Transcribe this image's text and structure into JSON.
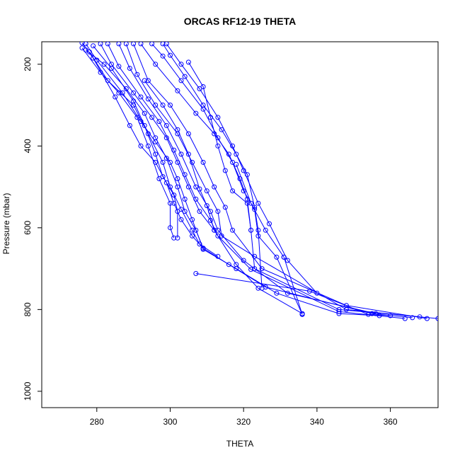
{
  "chart_data": {
    "type": "line",
    "title": "ORCAS RF12-19 THETA",
    "xlabel": "THETA",
    "ylabel": "Pressure (mbar)",
    "xlim": [
      265,
      373
    ],
    "ylim": [
      1040,
      145
    ],
    "y_reversed": true,
    "grid": false,
    "x_ticks": [
      280,
      300,
      320,
      340,
      360
    ],
    "y_ticks": [
      200,
      400,
      600,
      800,
      1000
    ],
    "series_color": "#0000ff",
    "series": [
      {
        "points": [
          [
            276,
            148
          ],
          [
            279,
            185
          ],
          [
            285,
            280
          ],
          [
            289,
            350
          ],
          [
            292,
            400
          ],
          [
            296,
            440
          ],
          [
            299,
            490
          ],
          [
            301,
            540
          ],
          [
            303,
            580
          ],
          [
            306,
            620
          ],
          [
            309,
            650
          ],
          [
            316,
            690
          ],
          [
            326,
            745
          ],
          [
            355,
            810
          ],
          [
            366,
            820
          ]
        ]
      },
      {
        "points": [
          [
            277,
            150
          ],
          [
            280,
            190
          ],
          [
            287,
            270
          ],
          [
            292,
            340
          ],
          [
            296,
            390
          ],
          [
            300,
            440
          ],
          [
            302,
            480
          ],
          [
            304,
            530
          ],
          [
            306,
            580
          ],
          [
            309,
            653
          ],
          [
            318,
            700
          ],
          [
            329,
            760
          ],
          [
            346,
            810
          ],
          [
            357,
            815
          ]
        ]
      },
      {
        "points": [
          [
            281,
            150
          ],
          [
            284,
            200
          ],
          [
            290,
            270
          ],
          [
            295,
            330
          ],
          [
            299,
            380
          ],
          [
            302,
            440
          ],
          [
            305,
            500
          ],
          [
            308,
            560
          ],
          [
            312,
            606
          ],
          [
            318,
            690
          ],
          [
            324,
            748
          ],
          [
            336,
            810
          ]
        ]
      },
      {
        "points": [
          [
            283,
            150
          ],
          [
            286,
            205
          ],
          [
            292,
            280
          ],
          [
            297,
            340
          ],
          [
            301,
            410
          ],
          [
            304,
            470
          ],
          [
            307,
            530
          ],
          [
            311,
            582
          ],
          [
            313,
            620
          ],
          [
            322,
            702
          ],
          [
            346,
            805
          ],
          [
            364,
            822
          ]
        ]
      },
      {
        "points": [
          [
            286,
            150
          ],
          [
            289,
            210
          ],
          [
            294,
            285
          ],
          [
            299,
            350
          ],
          [
            303,
            420
          ],
          [
            307,
            500
          ],
          [
            311,
            560
          ],
          [
            313,
            606
          ],
          [
            320,
            680
          ],
          [
            332,
            760
          ],
          [
            356,
            810
          ]
        ]
      },
      {
        "points": [
          [
            288,
            150
          ],
          [
            291,
            225
          ],
          [
            296,
            300
          ],
          [
            302,
            370
          ],
          [
            306,
            440
          ],
          [
            310,
            510
          ],
          [
            313,
            560
          ],
          [
            314,
            620
          ],
          [
            323,
            670
          ],
          [
            348,
            800
          ],
          [
            368,
            818
          ]
        ]
      },
      {
        "points": [
          [
            290,
            150
          ],
          [
            294,
            240
          ],
          [
            300,
            300
          ],
          [
            305,
            370
          ],
          [
            309,
            440
          ],
          [
            312,
            500
          ],
          [
            315,
            550
          ],
          [
            317,
            606
          ],
          [
            325,
            700
          ],
          [
            348,
            790
          ],
          [
            370,
            822
          ]
        ]
      },
      {
        "points": [
          [
            292,
            150
          ],
          [
            296,
            200
          ],
          [
            302,
            265
          ],
          [
            307,
            320
          ],
          [
            312,
            370
          ],
          [
            316,
            420
          ],
          [
            319,
            480
          ],
          [
            321,
            530
          ],
          [
            322,
            606
          ],
          [
            323,
            700
          ],
          [
            346,
            800
          ],
          [
            373,
            822
          ]
        ]
      },
      {
        "points": [
          [
            295,
            150
          ],
          [
            298,
            180
          ],
          [
            303,
            240
          ],
          [
            309,
            310
          ],
          [
            313,
            380
          ],
          [
            317,
            440
          ],
          [
            320,
            510
          ],
          [
            323,
            555
          ],
          [
            324,
            620
          ],
          [
            329,
            672
          ],
          [
            336,
            812
          ]
        ]
      },
      {
        "points": [
          [
            299,
            150
          ],
          [
            303,
            200
          ],
          [
            308,
            260
          ],
          [
            313,
            330
          ],
          [
            317,
            400
          ],
          [
            320,
            460
          ],
          [
            324,
            540
          ],
          [
            327,
            590
          ],
          [
            332,
            680
          ],
          [
            340,
            760
          ]
        ]
      },
      {
        "points": [
          [
            298,
            150
          ],
          [
            300,
            178
          ],
          [
            304,
            230
          ],
          [
            309,
            300
          ],
          [
            314,
            360
          ],
          [
            318,
            420
          ],
          [
            321,
            470
          ],
          [
            323,
            550
          ],
          [
            324,
            606
          ],
          [
            325,
            748
          ]
        ]
      },
      {
        "points": [
          [
            277,
            165
          ],
          [
            282,
            200
          ],
          [
            288,
            260
          ],
          [
            293,
            320
          ],
          [
            296,
            380
          ],
          [
            299,
            430
          ],
          [
            302,
            500
          ],
          [
            304,
            560
          ],
          [
            307,
            606
          ],
          [
            309,
            650
          ]
        ]
      },
      {
        "points": [
          [
            278,
            170
          ],
          [
            283,
            240
          ],
          [
            290,
            300
          ],
          [
            294,
            370
          ],
          [
            298,
            440
          ],
          [
            300,
            500
          ],
          [
            303,
            555
          ],
          [
            306,
            606
          ],
          [
            308,
            640
          ],
          [
            313,
            670
          ]
        ]
      },
      {
        "points": [
          [
            279,
            155
          ],
          [
            284,
            210
          ],
          [
            290,
            290
          ],
          [
            293,
            350
          ],
          [
            296,
            420
          ],
          [
            298,
            475
          ],
          [
            301,
            520
          ],
          [
            302,
            560
          ],
          [
            302,
            625
          ]
        ]
      },
      {
        "points": [
          [
            276,
            160
          ],
          [
            281,
            220
          ],
          [
            286,
            270
          ],
          [
            291,
            330
          ],
          [
            294,
            400
          ],
          [
            297,
            480
          ],
          [
            300,
            540
          ],
          [
            300,
            600
          ],
          [
            301,
            625
          ]
        ]
      },
      {
        "points": [
          [
            307,
            712
          ],
          [
            338,
            755
          ],
          [
            354,
            812
          ],
          [
            360,
            815
          ]
        ]
      },
      {
        "points": [
          [
            331,
            672
          ],
          [
            336,
            812
          ]
        ]
      },
      {
        "points": [
          [
            318,
            445
          ],
          [
            322,
            540
          ],
          [
            326,
            606
          ],
          [
            331,
            672
          ]
        ]
      },
      {
        "points": [
          [
            305,
            195
          ],
          [
            309,
            255
          ],
          [
            311,
            330
          ],
          [
            313,
            400
          ],
          [
            315,
            460
          ],
          [
            317,
            510
          ],
          [
            321,
            540
          ],
          [
            322,
            606
          ]
        ]
      },
      {
        "points": [
          [
            293,
            240
          ],
          [
            298,
            300
          ],
          [
            302,
            360
          ],
          [
            305,
            420
          ],
          [
            308,
            505
          ],
          [
            310,
            546
          ],
          [
            312,
            606
          ]
        ]
      }
    ]
  }
}
